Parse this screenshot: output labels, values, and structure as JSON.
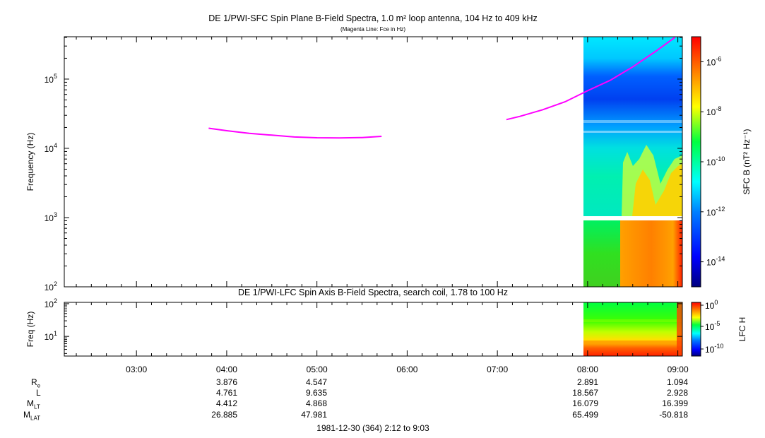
{
  "top_panel": {
    "title": "DE 1/PWI-SFC  Spin Plane B-Field Spectra, 1.0 m² loop antenna, 104 Hz to 409 kHz",
    "subtitle": "(Magenta Line: Fce in Hz)",
    "ylabel": "Frequency (Hz)",
    "y_ticks": [
      {
        "base": "10",
        "exp": "2",
        "value": 100
      },
      {
        "base": "10",
        "exp": "3",
        "value": 1000
      },
      {
        "base": "10",
        "exp": "4",
        "value": 10000
      },
      {
        "base": "10",
        "exp": "5",
        "value": 100000
      }
    ],
    "colorbar_label": "SFC B (nT² Hz⁻¹)",
    "colorbar_ticks": [
      {
        "base": "10",
        "exp": "-6"
      },
      {
        "base": "10",
        "exp": "-8"
      },
      {
        "base": "10",
        "exp": "-10"
      },
      {
        "base": "10",
        "exp": "-12"
      },
      {
        "base": "10",
        "exp": "-14"
      }
    ]
  },
  "bottom_panel": {
    "title": "DE 1/PWI-LFC  Spin Axis B-Field Spectra, search coil, 1.78 to 100 Hz",
    "ylabel": "Freq (Hz)",
    "y_ticks": [
      {
        "base": "10",
        "exp": "1",
        "value": 10
      },
      {
        "base": "10",
        "exp": "2",
        "value": 100
      }
    ],
    "colorbar_label": "LFC H",
    "colorbar_ticks": [
      {
        "base": "10",
        "exp": "0"
      },
      {
        "base": "10",
        "exp": "-5"
      },
      {
        "base": "10",
        "exp": "-10"
      }
    ]
  },
  "time_axis": {
    "ticks": [
      "03:00",
      "04:00",
      "05:00",
      "06:00",
      "07:00",
      "08:00",
      "09:00"
    ],
    "caption": "1981-12-30 (364) 2:12 to 9:03"
  },
  "ephemeris": {
    "labels": [
      {
        "base": "R",
        "sub": "e"
      },
      {
        "base": "L",
        "sub": ""
      },
      {
        "base": "M",
        "sub": "LT"
      },
      {
        "base": "M",
        "sub": "LAT"
      }
    ],
    "columns": [
      {
        "time": "04:00",
        "values": [
          "3.876",
          "4.761",
          "4.412",
          "26.885"
        ]
      },
      {
        "time": "05:00",
        "values": [
          "4.547",
          "9.635",
          "4.868",
          "47.981"
        ]
      },
      {
        "time": "08:00",
        "values": [
          "2.891",
          "18.567",
          "16.079",
          "65.499"
        ]
      },
      {
        "time": "09:00",
        "values": [
          "1.094",
          "2.928",
          "16.399",
          "-50.818"
        ]
      }
    ]
  },
  "chart_data": [
    {
      "type": "heatmap",
      "title": "DE 1/PWI-SFC  Spin Plane B-Field Spectra, 1.0 m² loop antenna, 104 Hz to 409 kHz",
      "subtitle": "(Magenta Line: Fce in Hz)",
      "xlabel": "",
      "ylabel": "Frequency (Hz)",
      "x_range": [
        "02:12",
        "09:03"
      ],
      "ylim": [
        100,
        409000
      ],
      "y_scale": "log",
      "colorbar": {
        "label": "SFC B (nT² Hz⁻¹)",
        "range": [
          1e-15,
          1e-05
        ],
        "scale": "log"
      },
      "data_coverage": [
        "07:56",
        "09:03"
      ],
      "series": [
        {
          "name": "Fce",
          "color": "#ff00ff",
          "x": [
            "03:48",
            "04:00",
            "04:15",
            "04:30",
            "04:45",
            "05:00",
            "05:15",
            "05:30",
            "05:43"
          ],
          "values": [
            19500,
            18000,
            16500,
            15500,
            14600,
            14200,
            14100,
            14300,
            14900
          ]
        },
        {
          "name": "Fce",
          "color": "#ff00ff",
          "x": [
            "07:06",
            "07:15",
            "07:30",
            "07:45",
            "08:00",
            "08:15",
            "08:30",
            "08:45",
            "08:58"
          ],
          "values": [
            26000,
            29000,
            36000,
            47000,
            68000,
            96000,
            150000,
            250000,
            400000
          ]
        }
      ]
    },
    {
      "type": "heatmap",
      "title": "DE 1/PWI-LFC  Spin Axis B-Field Spectra, search coil, 1.78 to 100 Hz",
      "xlabel": "",
      "ylabel": "Freq (Hz)",
      "x_range": [
        "02:12",
        "09:03"
      ],
      "ylim": [
        2.5,
        110
      ],
      "y_scale": "log",
      "colorbar": {
        "label": "LFC H",
        "range": [
          1e-12,
          1
        ],
        "scale": "log"
      },
      "data_coverage": [
        "07:56",
        "09:03"
      ]
    }
  ]
}
